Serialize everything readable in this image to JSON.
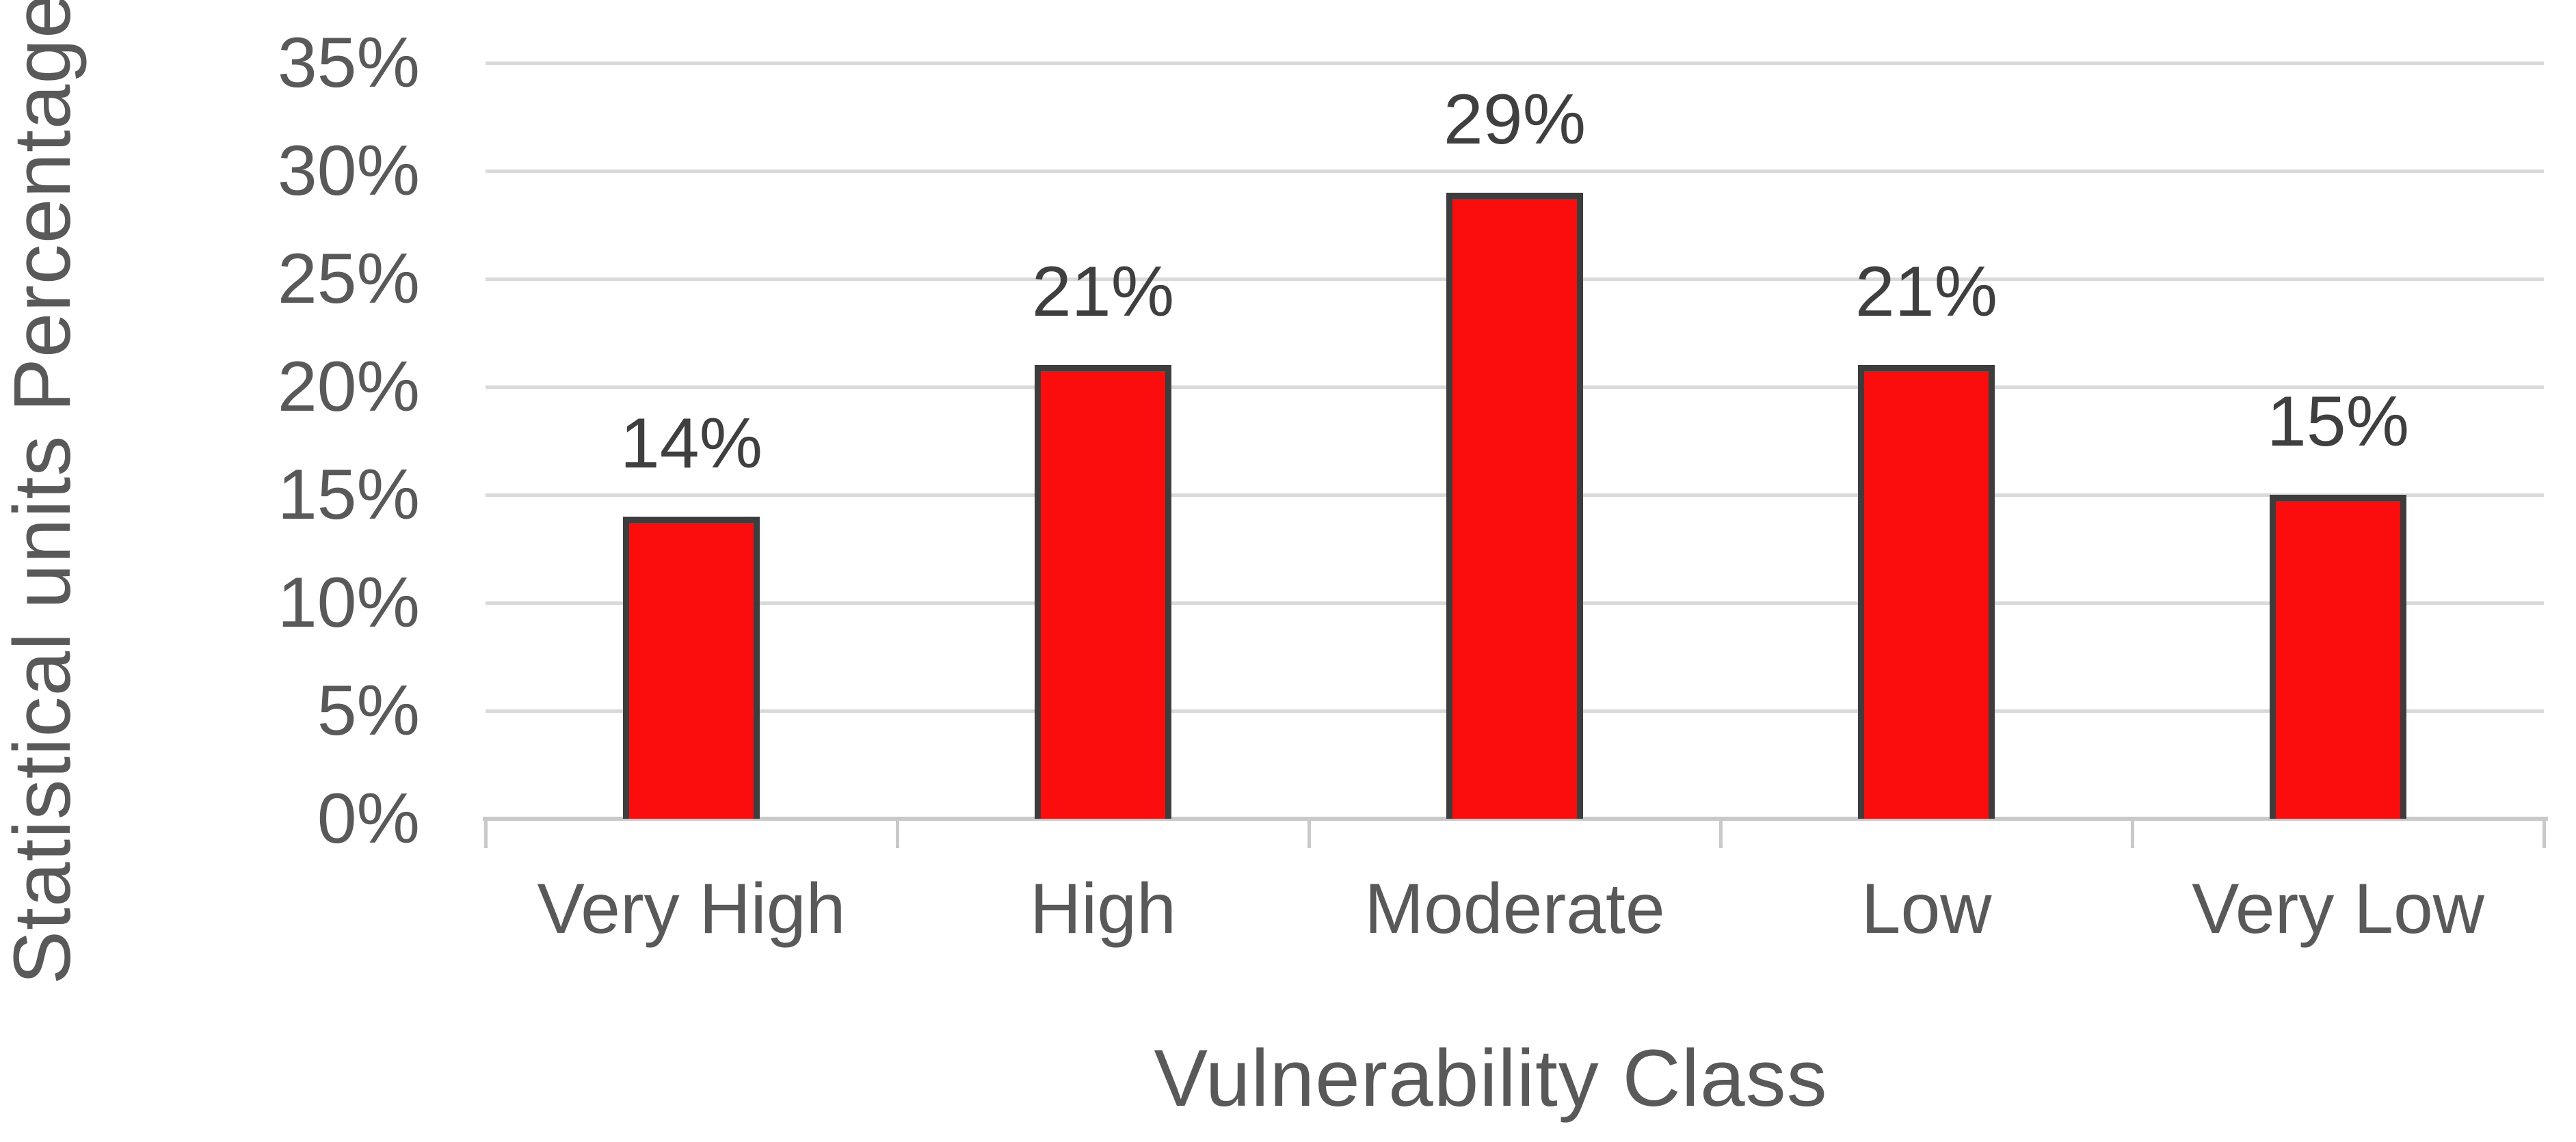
{
  "chart_data": {
    "type": "bar",
    "title": "",
    "xlabel": "Vulnerability Class",
    "ylabel": "Statistical units Percentage",
    "categories": [
      "Very High",
      "High",
      "Moderate",
      "Low",
      "Very Low"
    ],
    "values": [
      14,
      21,
      29,
      21,
      15
    ],
    "data_labels": [
      "14%",
      "21%",
      "29%",
      "21%",
      "15%"
    ],
    "ylim": [
      0,
      35
    ],
    "ytick_step": 5,
    "ytick_labels": [
      "0%",
      "5%",
      "10%",
      "15%",
      "20%",
      "25%",
      "30%",
      "35%"
    ],
    "grid": "horizontal",
    "legend": "none",
    "colors": {
      "bar_fill": "#FB0D0D",
      "bar_border": "#3D3D3D",
      "gridline": "#D9D9D9",
      "axis_line": "#C9C9C9",
      "axis_text": "#595959",
      "data_label_text": "#3F3F3F"
    }
  }
}
